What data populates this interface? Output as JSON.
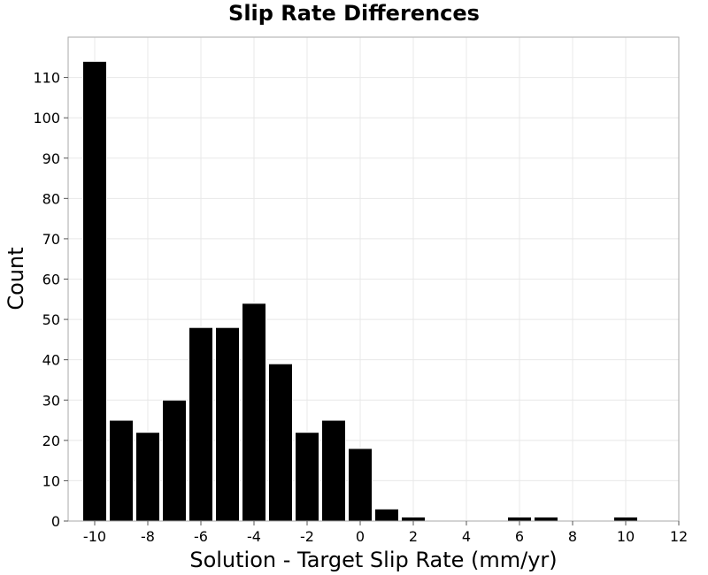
{
  "chart_data": {
    "type": "bar",
    "title": "Slip Rate Differences",
    "xlabel": "Solution - Target Slip Rate (mm/yr)",
    "ylabel": "Count",
    "bin_width": 1,
    "bin_centers": [
      -10,
      -9,
      -8,
      -7,
      -6,
      -5,
      -4,
      -3,
      -2,
      -1,
      0,
      1,
      2,
      3,
      4,
      5,
      6,
      7,
      8,
      9,
      10
    ],
    "values": [
      114,
      25,
      22,
      30,
      48,
      48,
      54,
      39,
      22,
      25,
      18,
      3,
      1,
      0,
      0,
      0,
      1,
      1,
      0,
      0,
      1
    ],
    "xlim": [
      -11,
      12
    ],
    "ylim": [
      0,
      120
    ],
    "xticks": [
      -10,
      -8,
      -6,
      -4,
      -2,
      0,
      2,
      4,
      6,
      8,
      10,
      12
    ],
    "xtick_labels": [
      "-10",
      "-8",
      "-6",
      "-4",
      "-2",
      "0",
      "2",
      "4",
      "6",
      "8",
      "10",
      "12"
    ],
    "yticks": [
      0,
      10,
      20,
      30,
      40,
      50,
      60,
      70,
      80,
      90,
      100,
      110
    ],
    "ytick_labels": [
      "0",
      "10",
      "20",
      "30",
      "40",
      "50",
      "60",
      "70",
      "80",
      "90",
      "100",
      "110"
    ],
    "grid": true,
    "bar_color": "#000000",
    "bar_edge_color": "#ffffff"
  }
}
